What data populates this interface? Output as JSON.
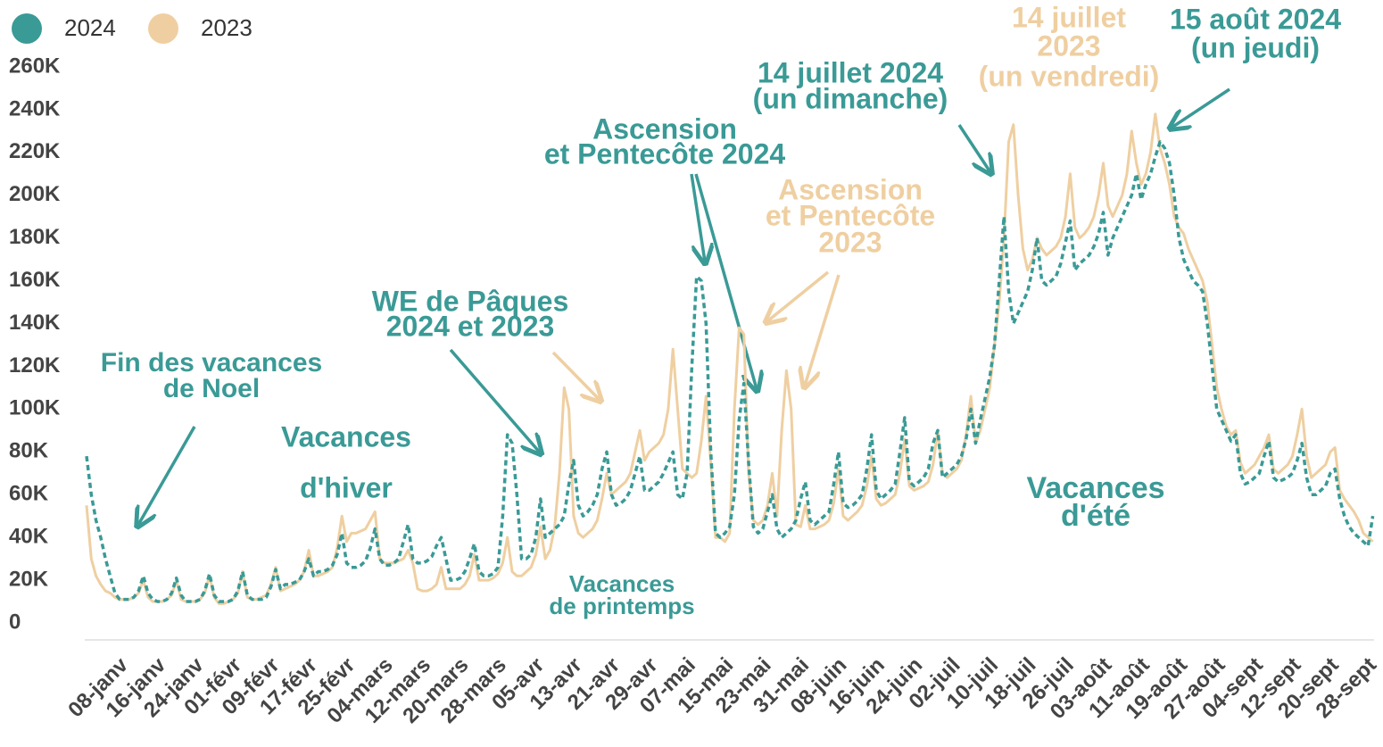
{
  "chart_data": {
    "type": "line",
    "categories": [
      null,
      null,
      null,
      null,
      null,
      null,
      null,
      "08-janv",
      null,
      null,
      null,
      null,
      null,
      null,
      null,
      "16-janv",
      null,
      null,
      null,
      null,
      null,
      null,
      null,
      "24-janv",
      null,
      null,
      null,
      null,
      null,
      null,
      null,
      "01-févr",
      null,
      null,
      null,
      null,
      null,
      null,
      null,
      "09-févr",
      null,
      null,
      null,
      null,
      null,
      null,
      null,
      "17-févr",
      null,
      null,
      null,
      null,
      null,
      null,
      null,
      "25-févr",
      null,
      null,
      null,
      null,
      null,
      null,
      null,
      "04-mars",
      null,
      null,
      null,
      null,
      null,
      null,
      null,
      "12-mars",
      null,
      null,
      null,
      null,
      null,
      null,
      null,
      "20-mars",
      null,
      null,
      null,
      null,
      null,
      null,
      null,
      "28-mars",
      null,
      null,
      null,
      null,
      null,
      null,
      null,
      "05-avr",
      null,
      null,
      null,
      null,
      null,
      null,
      null,
      "13-avr",
      null,
      null,
      null,
      null,
      null,
      null,
      null,
      "21-avr",
      null,
      null,
      null,
      null,
      null,
      null,
      null,
      "29-avr",
      null,
      null,
      null,
      null,
      null,
      null,
      null,
      "07-mai",
      null,
      null,
      null,
      null,
      null,
      null,
      null,
      "15-mai",
      null,
      null,
      null,
      null,
      null,
      null,
      null,
      "23-mai",
      null,
      null,
      null,
      null,
      null,
      null,
      null,
      "31-mai",
      null,
      null,
      null,
      null,
      null,
      null,
      null,
      "08-juin",
      null,
      null,
      null,
      null,
      null,
      null,
      null,
      "16-juin",
      null,
      null,
      null,
      null,
      null,
      null,
      null,
      "24-juin",
      null,
      null,
      null,
      null,
      null,
      null,
      null,
      "02-juil",
      null,
      null,
      null,
      null,
      null,
      null,
      null,
      "10-juil",
      null,
      null,
      null,
      null,
      null,
      null,
      null,
      "18-juil",
      null,
      null,
      null,
      null,
      null,
      null,
      null,
      "26-juil",
      null,
      null,
      null,
      null,
      null,
      null,
      null,
      "03-août",
      null,
      null,
      null,
      null,
      null,
      null,
      null,
      "11-août",
      null,
      null,
      null,
      null,
      null,
      null,
      null,
      "19-août",
      null,
      null,
      null,
      null,
      null,
      null,
      null,
      "27-août",
      null,
      null,
      null,
      null,
      null,
      null,
      null,
      "04-sept",
      null,
      null,
      null,
      null,
      null,
      null,
      null,
      "12-sept",
      null,
      null,
      null,
      null,
      null,
      null,
      null,
      "20-sept",
      null,
      null,
      null,
      null,
      null,
      null,
      null,
      "28-sept",
      null
    ],
    "series": [
      {
        "name": "2024",
        "color": "#3a9a96",
        "dashed": true,
        "values": [
          78000,
          60000,
          48000,
          40000,
          30000,
          22000,
          14000,
          11000,
          11000,
          11000,
          12000,
          15000,
          22000,
          14000,
          11000,
          10000,
          10000,
          11000,
          14000,
          21000,
          13000,
          10000,
          10000,
          10000,
          11000,
          15000,
          23000,
          13000,
          10000,
          10000,
          10000,
          11000,
          15000,
          24000,
          13000,
          11000,
          11000,
          11000,
          12000,
          17000,
          25000,
          16000,
          18000,
          18000,
          19000,
          20000,
          24000,
          30000,
          22000,
          24000,
          24000,
          25000,
          27000,
          32000,
          42000,
          28000,
          26000,
          26000,
          27000,
          29000,
          35000,
          44000,
          30000,
          27000,
          27000,
          28000,
          30000,
          38000,
          46000,
          30000,
          28000,
          28000,
          29000,
          31000,
          36000,
          40000,
          30000,
          20000,
          20000,
          21000,
          24000,
          30000,
          37000,
          24000,
          22000,
          22000,
          23000,
          26000,
          50000,
          88000,
          84000,
          60000,
          30000,
          30000,
          32000,
          40000,
          58000,
          40000,
          42000,
          44000,
          46000,
          50000,
          65000,
          76000,
          55000,
          50000,
          52000,
          55000,
          60000,
          72000,
          80000,
          60000,
          55000,
          56000,
          58000,
          62000,
          70000,
          78000,
          62000,
          62000,
          64000,
          66000,
          70000,
          75000,
          80000,
          60000,
          58000,
          70000,
          120000,
          162000,
          160000,
          140000,
          80000,
          42000,
          40000,
          42000,
          45000,
          60000,
          95000,
          112000,
          75000,
          45000,
          42000,
          44000,
          52000,
          60000,
          44000,
          40000,
          42000,
          44000,
          48000,
          58000,
          66000,
          48000,
          46000,
          48000,
          50000,
          52000,
          65000,
          80000,
          56000,
          54000,
          55000,
          57000,
          60000,
          72000,
          88000,
          62000,
          58000,
          60000,
          62000,
          65000,
          80000,
          96000,
          66000,
          64000,
          66000,
          68000,
          72000,
          84000,
          90000,
          68000,
          70000,
          72000,
          74000,
          78000,
          86000,
          100000,
          84000,
          95000,
          105000,
          115000,
          130000,
          160000,
          190000,
          155000,
          140000,
          145000,
          150000,
          155000,
          165000,
          180000,
          160000,
          158000,
          160000,
          162000,
          168000,
          178000,
          188000,
          165000,
          168000,
          170000,
          172000,
          176000,
          182000,
          192000,
          172000,
          180000,
          185000,
          190000,
          195000,
          200000,
          210000,
          198000,
          205000,
          210000,
          218000,
          225000,
          222000,
          215000,
          200000,
          180000,
          170000,
          165000,
          160000,
          158000,
          155000,
          140000,
          120000,
          100000,
          95000,
          90000,
          85000,
          88000,
          70000,
          65000,
          66000,
          68000,
          70000,
          78000,
          85000,
          68000,
          66000,
          67000,
          68000,
          70000,
          76000,
          84000,
          68000,
          60000,
          60000,
          62000,
          64000,
          70000,
          72000,
          58000,
          50000,
          45000,
          42000,
          40000,
          38000,
          36000,
          50000
        ]
      },
      {
        "name": "2023",
        "color": "#efcfa1",
        "dashed": false,
        "values": [
          55000,
          30000,
          22000,
          18000,
          15000,
          14000,
          12000,
          11000,
          11000,
          11000,
          12000,
          14000,
          20000,
          12000,
          10000,
          10000,
          10000,
          11000,
          13000,
          20000,
          11000,
          10000,
          10000,
          10000,
          11000,
          14000,
          22000,
          12000,
          9000,
          9000,
          10000,
          11000,
          14000,
          24000,
          12000,
          11000,
          11000,
          12000,
          13000,
          18000,
          26000,
          15000,
          16000,
          17000,
          18000,
          20000,
          24000,
          34000,
          22000,
          22000,
          23000,
          24000,
          26000,
          35000,
          50000,
          38000,
          42000,
          42000,
          43000,
          44000,
          48000,
          52000,
          30000,
          28000,
          28000,
          28000,
          29000,
          30000,
          34000,
          28000,
          16000,
          15000,
          15000,
          16000,
          18000,
          26000,
          16000,
          16000,
          16000,
          16000,
          18000,
          22000,
          32000,
          20000,
          20000,
          20000,
          21000,
          23000,
          28000,
          40000,
          24000,
          22000,
          22000,
          24000,
          26000,
          32000,
          45000,
          30000,
          34000,
          45000,
          70000,
          110000,
          100000,
          50000,
          42000,
          40000,
          42000,
          44000,
          48000,
          58000,
          70000,
          60000,
          62000,
          64000,
          66000,
          70000,
          80000,
          90000,
          76000,
          80000,
          82000,
          84000,
          88000,
          100000,
          128000,
          100000,
          72000,
          70000,
          68000,
          70000,
          85000,
          106000,
          75000,
          40000,
          40000,
          38000,
          42000,
          100000,
          138000,
          135000,
          70000,
          48000,
          46000,
          48000,
          55000,
          70000,
          50000,
          90000,
          118000,
          100000,
          46000,
          45000,
          55000,
          44000,
          44000,
          45000,
          46000,
          48000,
          56000,
          72000,
          50000,
          48000,
          50000,
          52000,
          55000,
          64000,
          78000,
          58000,
          55000,
          56000,
          58000,
          60000,
          70000,
          86000,
          64000,
          62000,
          63000,
          64000,
          66000,
          74000,
          90000,
          70000,
          68000,
          70000,
          72000,
          76000,
          88000,
          106000,
          84000,
          90000,
          100000,
          110000,
          130000,
          150000,
          180000,
          225000,
          233000,
          200000,
          175000,
          165000,
          170000,
          180000,
          175000,
          172000,
          174000,
          176000,
          180000,
          190000,
          210000,
          185000,
          180000,
          182000,
          185000,
          190000,
          200000,
          215000,
          195000,
          190000,
          195000,
          200000,
          210000,
          230000,
          215000,
          205000,
          210000,
          220000,
          238000,
          222000,
          215000,
          205000,
          190000,
          185000,
          182000,
          175000,
          170000,
          165000,
          160000,
          150000,
          130000,
          110000,
          100000,
          92000,
          88000,
          90000,
          75000,
          70000,
          72000,
          74000,
          78000,
          82000,
          88000,
          72000,
          70000,
          72000,
          74000,
          78000,
          88000,
          100000,
          78000,
          68000,
          70000,
          72000,
          74000,
          80000,
          82000,
          62000,
          58000,
          55000,
          52000,
          48000,
          42000,
          40000,
          38000
        ]
      }
    ],
    "ylim": [
      0,
      260000
    ],
    "yticks": [
      0,
      {
        "value": 20000,
        "label": "20K"
      },
      {
        "value": 40000,
        "label": "40K"
      },
      {
        "value": 60000,
        "label": "60K"
      },
      {
        "value": 80000,
        "label": "80K"
      },
      {
        "value": 100000,
        "label": "100K"
      },
      {
        "value": 120000,
        "label": "120K"
      },
      {
        "value": 140000,
        "label": "140K"
      },
      {
        "value": 160000,
        "label": "160K"
      },
      {
        "value": 180000,
        "label": "180K"
      },
      {
        "value": 200000,
        "label": "200K"
      },
      {
        "value": 220000,
        "label": "220K"
      },
      {
        "value": 240000,
        "label": "240K"
      },
      {
        "value": 260000,
        "label": "260K"
      }
    ],
    "grid": false,
    "legend": "top-left",
    "annotations": [
      {
        "lines": [
          "Fin des vacances",
          "de Noel"
        ],
        "color": "#3a9a96"
      },
      {
        "lines": [
          "Vacances",
          "d'hiver"
        ],
        "color": "#3a9a96"
      },
      {
        "lines": [
          "WE de Pâques",
          "2024 et 2023"
        ],
        "color": "#3a9a96"
      },
      {
        "lines": [
          "Vacances",
          "de printemps"
        ],
        "color": "#3a9a96"
      },
      {
        "lines": [
          "Ascension",
          "et Pentecôte 2024"
        ],
        "color": "#3a9a96"
      },
      {
        "lines": [
          "Ascension",
          "et Pentecôte",
          "2023"
        ],
        "color": "#efcfa1"
      },
      {
        "lines": [
          "14 juillet 2024",
          "(un dimanche)"
        ],
        "color": "#3a9a96"
      },
      {
        "lines": [
          "14 juillet",
          "2023",
          "(un vendredi)"
        ],
        "color": "#efcfa1"
      },
      {
        "lines": [
          "15 août 2024",
          "(un jeudi)"
        ],
        "color": "#3a9a96"
      },
      {
        "lines": [
          "Vacances",
          "d'été"
        ],
        "color": "#3a9a96"
      }
    ]
  }
}
